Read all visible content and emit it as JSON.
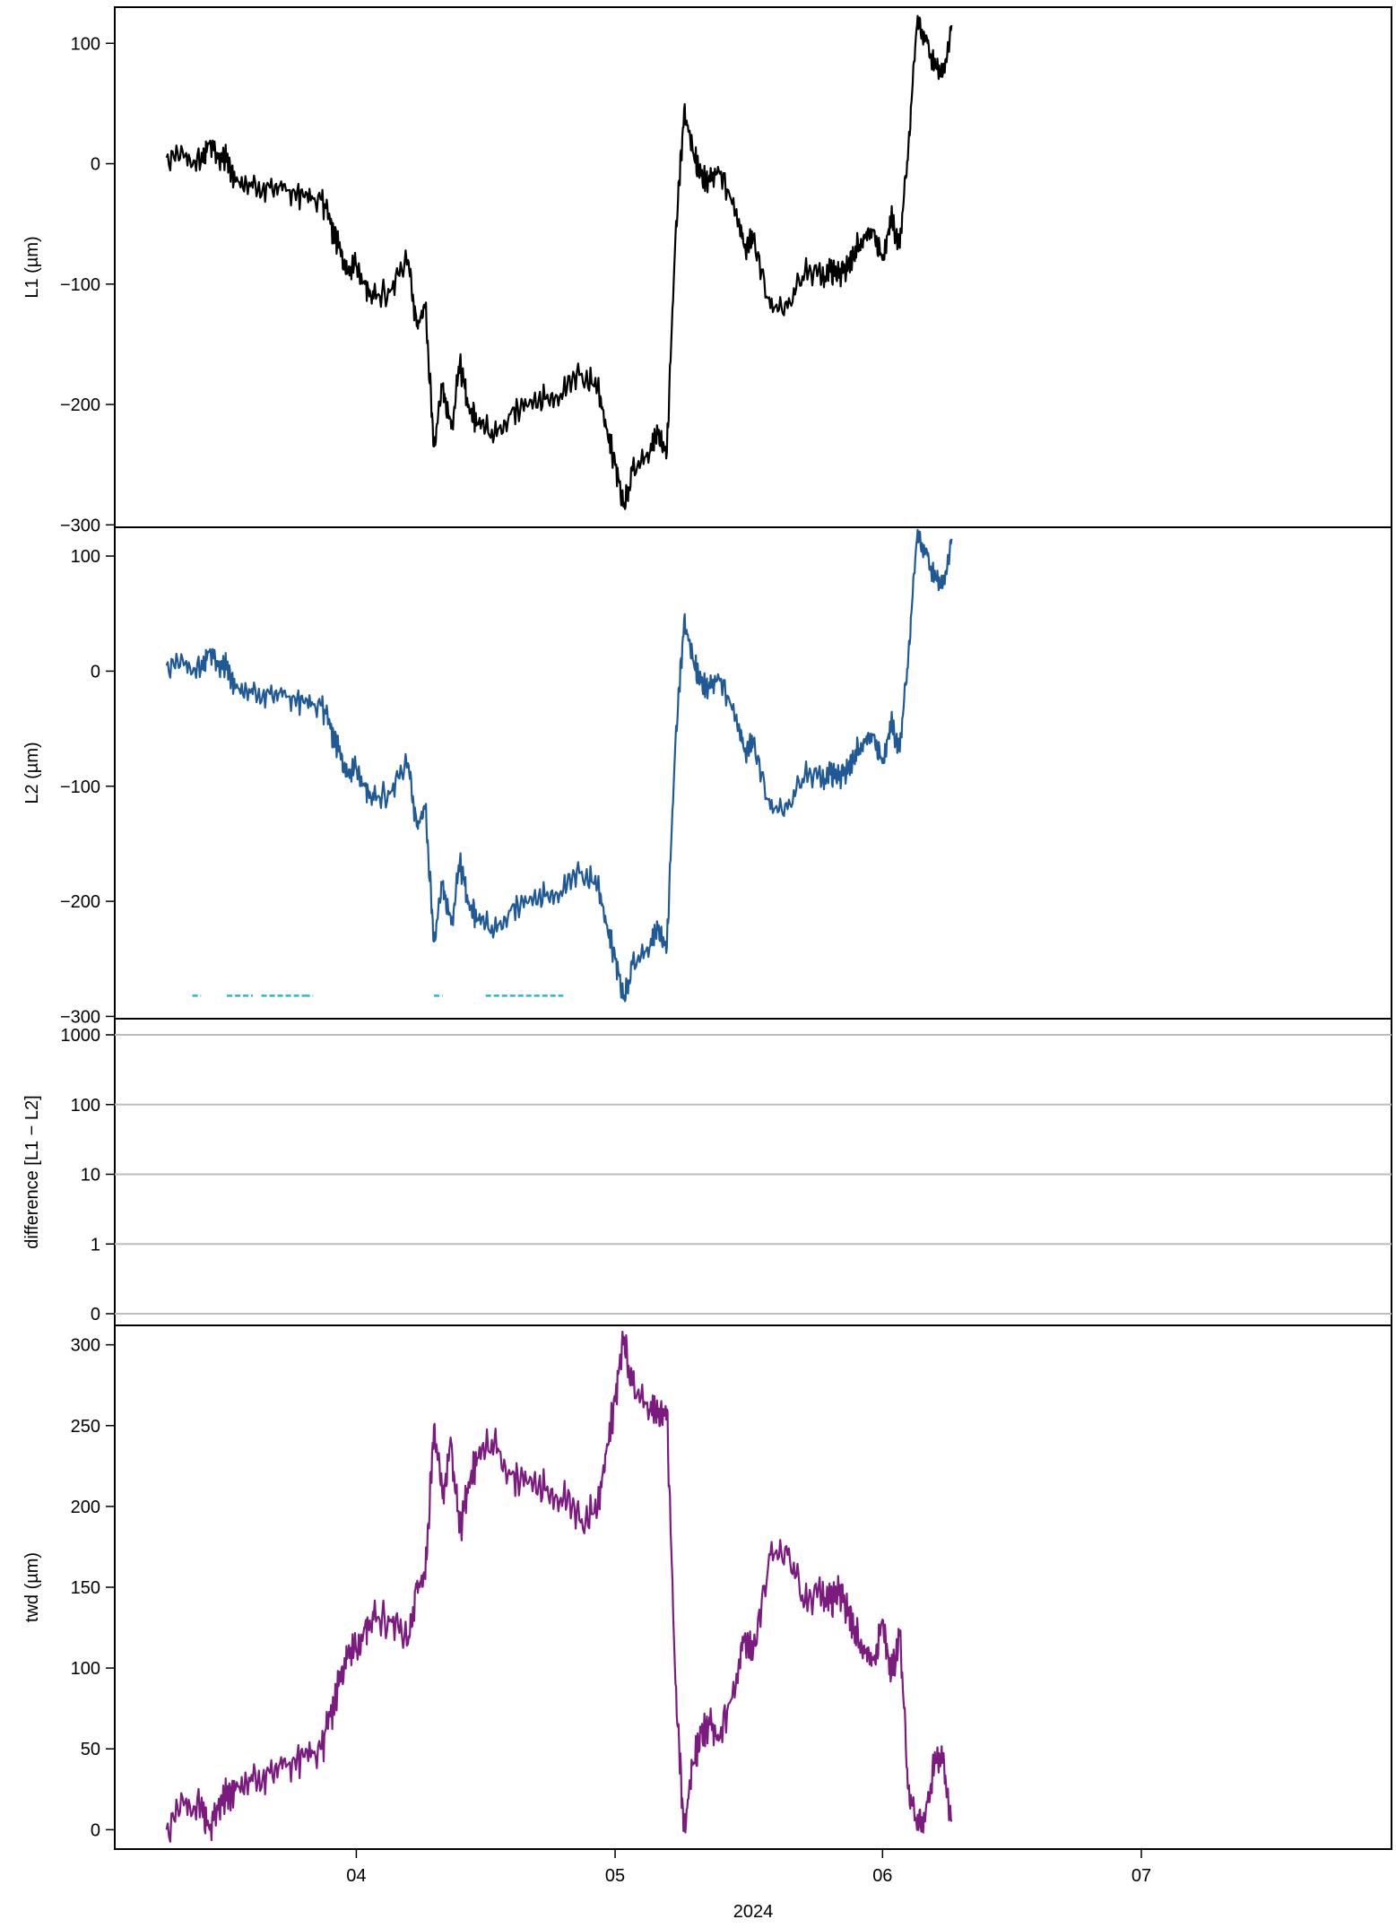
{
  "chart_data": {
    "type": "line",
    "xlabel": "2024",
    "x_ticks": [
      {
        "label": "04",
        "date": "2024-04-01"
      },
      {
        "label": "05",
        "date": "2024-05-01"
      },
      {
        "label": "06",
        "date": "2024-06-01"
      },
      {
        "label": "07",
        "date": "2024-07-01"
      }
    ],
    "x_range": [
      "2024-03-04",
      "2024-07-30"
    ],
    "panels": [
      {
        "id": "l1",
        "ylabel": "L1 (µm)",
        "color": "#000000",
        "ylim": [
          -302,
          130
        ],
        "yticks": [
          -300,
          -200,
          -100,
          0,
          100
        ],
        "ytick_labels": [
          "−300",
          "−200",
          "−100",
          "0",
          "100"
        ],
        "series": [
          {
            "x": [
              "2024-03-10",
              "2024-03-12",
              "2024-03-14",
              "2024-03-15",
              "2024-03-16",
              "2024-03-17",
              "2024-03-18",
              "2024-03-20",
              "2024-03-22",
              "2024-03-24",
              "2024-03-26",
              "2024-03-28",
              "2024-03-29",
              "2024-03-30",
              "2024-03-31",
              "2024-04-01",
              "2024-04-02",
              "2024-04-03",
              "2024-04-05",
              "2024-04-07",
              "2024-04-08",
              "2024-04-09",
              "2024-04-10",
              "2024-04-11",
              "2024-04-12",
              "2024-04-13",
              "2024-04-14",
              "2024-04-15",
              "2024-04-17",
              "2024-04-19",
              "2024-04-21",
              "2024-04-23",
              "2024-04-25",
              "2024-04-27",
              "2024-04-29",
              "2024-04-30",
              "2024-05-01",
              "2024-05-02",
              "2024-05-03",
              "2024-05-05",
              "2024-05-06",
              "2024-05-07",
              "2024-05-08",
              "2024-05-09",
              "2024-05-10",
              "2024-05-11",
              "2024-05-12",
              "2024-05-13",
              "2024-05-15",
              "2024-05-16",
              "2024-05-17",
              "2024-05-19",
              "2024-05-21",
              "2024-05-23",
              "2024-05-25",
              "2024-05-26",
              "2024-05-27",
              "2024-05-28",
              "2024-05-29",
              "2024-05-30",
              "2024-05-31",
              "2024-06-01",
              "2024-06-02",
              "2024-06-03",
              "2024-06-04",
              "2024-06-05",
              "2024-06-06",
              "2024-06-07",
              "2024-06-08",
              "2024-06-09"
            ],
            "y": [
              5,
              5,
              2,
              18,
              5,
              3,
              -15,
              -20,
              -20,
              -22,
              -28,
              -30,
              -50,
              -70,
              -90,
              -85,
              -100,
              -112,
              -105,
              -80,
              -135,
              -120,
              -235,
              -185,
              -220,
              -165,
              -200,
              -215,
              -225,
              -205,
              -200,
              -195,
              -190,
              -175,
              -185,
              -220,
              -250,
              -285,
              -255,
              -240,
              -225,
              -240,
              -60,
              45,
              10,
              -10,
              -15,
              -5,
              -40,
              -70,
              -60,
              -120,
              -120,
              -90,
              -95,
              -90,
              -95,
              -85,
              -70,
              -60,
              -55,
              -80,
              -45,
              -70,
              15,
              115,
              105,
              80,
              75,
              115
            ]
          }
        ]
      },
      {
        "id": "l2",
        "ylabel": "L2 (µm)",
        "color": "#1f5a96",
        "ylim": [
          -302,
          125
        ],
        "yticks": [
          -300,
          -200,
          -100,
          0,
          100
        ],
        "ytick_labels": [
          "−300",
          "−200",
          "−100",
          "0",
          "100"
        ],
        "series": [
          {
            "x": [
              "2024-03-10",
              "2024-03-12",
              "2024-03-14",
              "2024-03-15",
              "2024-03-16",
              "2024-03-17",
              "2024-03-18",
              "2024-03-20",
              "2024-03-22",
              "2024-03-24",
              "2024-03-26",
              "2024-03-28",
              "2024-03-29",
              "2024-03-30",
              "2024-03-31",
              "2024-04-01",
              "2024-04-02",
              "2024-04-03",
              "2024-04-05",
              "2024-04-07",
              "2024-04-08",
              "2024-04-09",
              "2024-04-10",
              "2024-04-11",
              "2024-04-12",
              "2024-04-13",
              "2024-04-14",
              "2024-04-15",
              "2024-04-17",
              "2024-04-19",
              "2024-04-21",
              "2024-04-23",
              "2024-04-25",
              "2024-04-27",
              "2024-04-29",
              "2024-04-30",
              "2024-05-01",
              "2024-05-02",
              "2024-05-03",
              "2024-05-05",
              "2024-05-06",
              "2024-05-07",
              "2024-05-08",
              "2024-05-09",
              "2024-05-10",
              "2024-05-11",
              "2024-05-12",
              "2024-05-13",
              "2024-05-15",
              "2024-05-16",
              "2024-05-17",
              "2024-05-19",
              "2024-05-21",
              "2024-05-23",
              "2024-05-25",
              "2024-05-26",
              "2024-05-27",
              "2024-05-28",
              "2024-05-29",
              "2024-05-30",
              "2024-05-31",
              "2024-06-01",
              "2024-06-02",
              "2024-06-03",
              "2024-06-04",
              "2024-06-05",
              "2024-06-06",
              "2024-06-07",
              "2024-06-08",
              "2024-06-09"
            ],
            "y": [
              5,
              5,
              2,
              18,
              5,
              3,
              -15,
              -20,
              -20,
              -22,
              -28,
              -30,
              -50,
              -70,
              -90,
              -85,
              -100,
              -112,
              -105,
              -80,
              -135,
              -120,
              -235,
              -185,
              -220,
              -165,
              -200,
              -215,
              -225,
              -205,
              -200,
              -195,
              -190,
              -175,
              -185,
              -220,
              -250,
              -285,
              -255,
              -240,
              -225,
              -240,
              -60,
              45,
              10,
              -10,
              -15,
              -5,
              -40,
              -70,
              -60,
              -120,
              -120,
              -90,
              -95,
              -90,
              -95,
              -85,
              -70,
              -60,
              -55,
              -80,
              -45,
              -70,
              15,
              115,
              105,
              80,
              75,
              115
            ]
          }
        ],
        "flag_color": "#29b8cf",
        "flags": [
          {
            "start": "2024-03-13",
            "end": "2024-03-14",
            "y": -282
          },
          {
            "start": "2024-03-17",
            "end": "2024-03-20",
            "y": -282
          },
          {
            "start": "2024-03-21",
            "end": "2024-03-26",
            "y": -282
          },
          {
            "start": "2024-03-26",
            "end": "2024-03-27",
            "y": -282
          },
          {
            "start": "2024-04-10",
            "end": "2024-04-11",
            "y": -282
          },
          {
            "start": "2024-04-16",
            "end": "2024-04-25",
            "y": -282
          }
        ]
      },
      {
        "id": "diff",
        "ylabel": "difference [L1 − L2]",
        "color": "#000000",
        "yticks": [
          0,
          1,
          10,
          100,
          1000
        ],
        "ytick_labels": [
          "0",
          "1",
          "10",
          "100",
          "1000"
        ],
        "grid": true,
        "grid_color": "#bdbdbd",
        "series": []
      },
      {
        "id": "twd",
        "ylabel": "twd (µm)",
        "color": "#7b1a7f",
        "ylim": [
          -12,
          312
        ],
        "yticks": [
          0,
          50,
          100,
          150,
          200,
          250,
          300
        ],
        "ytick_labels": [
          "0",
          "50",
          "100",
          "150",
          "200",
          "250",
          "300"
        ],
        "series": [
          {
            "x": [
              "2024-03-10",
              "2024-03-12",
              "2024-03-14",
              "2024-03-15",
              "2024-03-16",
              "2024-03-17",
              "2024-03-18",
              "2024-03-20",
              "2024-03-22",
              "2024-03-24",
              "2024-03-26",
              "2024-03-28",
              "2024-03-29",
              "2024-03-30",
              "2024-03-31",
              "2024-04-01",
              "2024-04-02",
              "2024-04-03",
              "2024-04-05",
              "2024-04-07",
              "2024-04-08",
              "2024-04-09",
              "2024-04-10",
              "2024-04-11",
              "2024-04-12",
              "2024-04-13",
              "2024-04-14",
              "2024-04-15",
              "2024-04-17",
              "2024-04-19",
              "2024-04-21",
              "2024-04-23",
              "2024-04-25",
              "2024-04-27",
              "2024-04-29",
              "2024-04-30",
              "2024-05-01",
              "2024-05-02",
              "2024-05-03",
              "2024-05-05",
              "2024-05-06",
              "2024-05-07",
              "2024-05-08",
              "2024-05-09",
              "2024-05-10",
              "2024-05-11",
              "2024-05-12",
              "2024-05-13",
              "2024-05-15",
              "2024-05-16",
              "2024-05-17",
              "2024-05-19",
              "2024-05-21",
              "2024-05-23",
              "2024-05-25",
              "2024-05-26",
              "2024-05-27",
              "2024-05-28",
              "2024-05-29",
              "2024-05-30",
              "2024-05-31",
              "2024-06-01",
              "2024-06-02",
              "2024-06-03",
              "2024-06-04",
              "2024-06-05",
              "2024-06-06",
              "2024-06-07",
              "2024-06-08",
              "2024-06-09"
            ],
            "y": [
              0,
              15,
              15,
              0,
              15,
              20,
              25,
              30,
              35,
              40,
              45,
              50,
              70,
              90,
              110,
              110,
              125,
              130,
              130,
              115,
              150,
              155,
              250,
              205,
              240,
              185,
              215,
              230,
              240,
              220,
              215,
              210,
              205,
              190,
              200,
              235,
              265,
              305,
              275,
              260,
              255,
              260,
              90,
              0,
              40,
              60,
              65,
              55,
              90,
              120,
              110,
              170,
              170,
              140,
              145,
              140,
              145,
              135,
              120,
              110,
              105,
              130,
              95,
              120,
              25,
              0,
              10,
              40,
              45,
              5
            ]
          }
        ]
      }
    ]
  }
}
